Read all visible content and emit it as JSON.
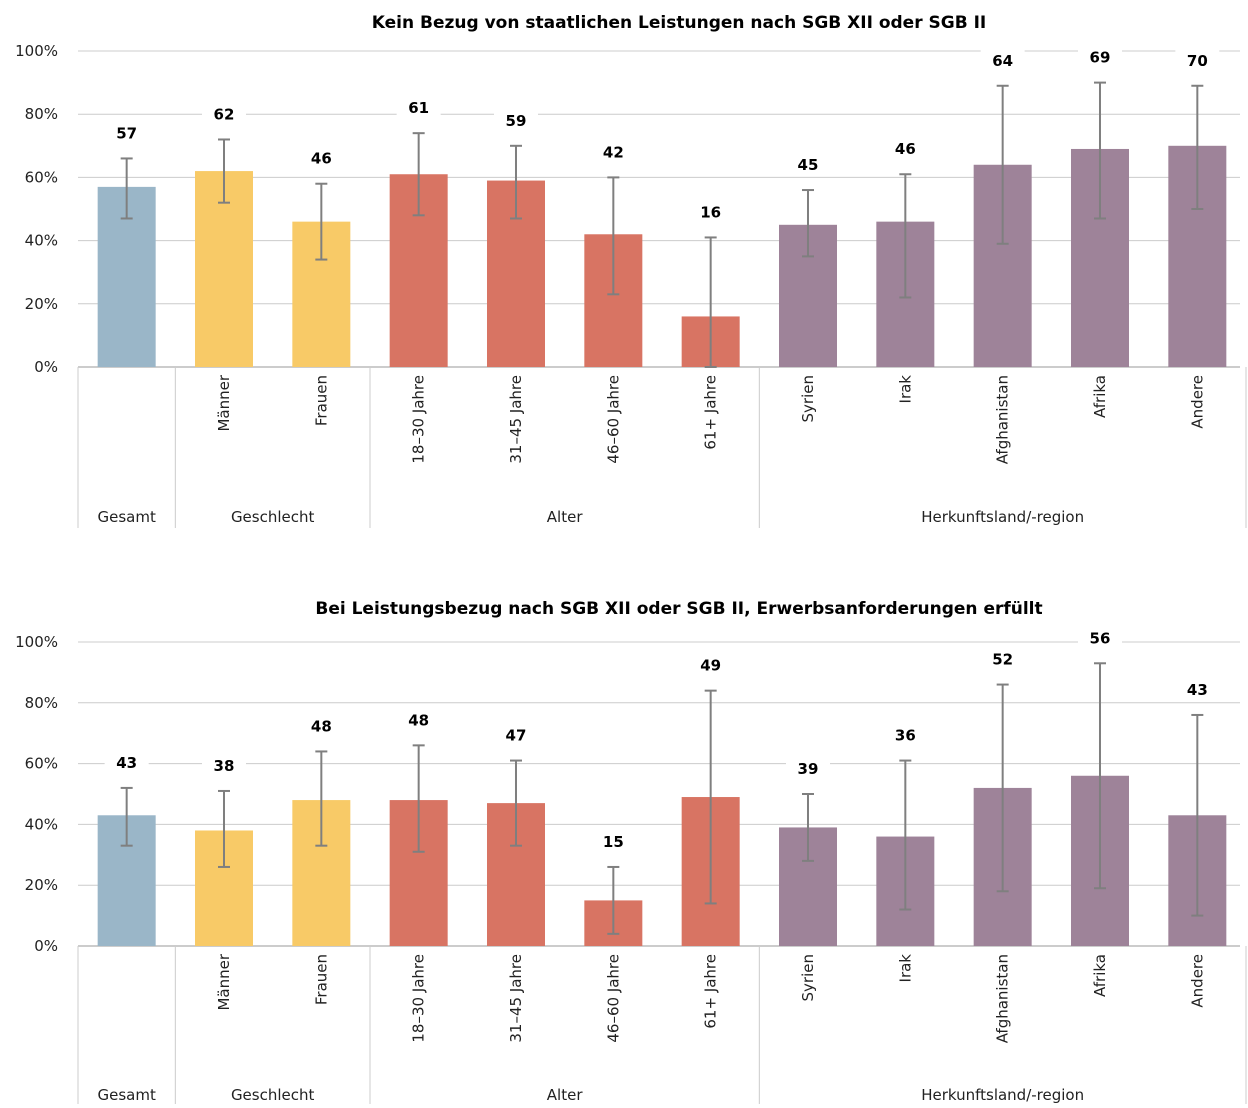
{
  "chart_data": [
    {
      "type": "bar",
      "title": "Kein Bezug von staatlichen Leistungen nach SGB XII oder SGB II",
      "ylim": [
        0,
        100
      ],
      "yticks": [
        "0%",
        "20%",
        "40%",
        "60%",
        "80%",
        "100%"
      ],
      "grid": true,
      "categories": [
        "",
        "Männer",
        "Frauen",
        "18–30 Jahre",
        "31–45 Jahre",
        "46–60 Jahre",
        "61+ Jahre",
        "Syrien",
        "Irak",
        "Afghanistan",
        "Afrika",
        "Andere"
      ],
      "groups": [
        {
          "label": "Gesamt",
          "count": 1,
          "color": "#9AB6C8"
        },
        {
          "label": "Geschlecht",
          "count": 2,
          "color": "#F8CA67"
        },
        {
          "label": "Alter",
          "count": 4,
          "color": "#D87463"
        },
        {
          "label": "Herkunftsland/-region",
          "count": 5,
          "color": "#9E8399"
        }
      ],
      "values": [
        57,
        62,
        46,
        61,
        59,
        42,
        16,
        45,
        46,
        64,
        69,
        70
      ],
      "value_labels": [
        "57",
        "62",
        "46",
        "61",
        "59",
        "42",
        "16",
        "45",
        "46",
        "64",
        "69",
        "70"
      ],
      "error_low": [
        47,
        52,
        34,
        48,
        47,
        23,
        0,
        35,
        22,
        39,
        47,
        50
      ],
      "error_high": [
        66,
        72,
        58,
        74,
        70,
        60,
        41,
        56,
        61,
        89,
        90,
        89
      ]
    },
    {
      "type": "bar",
      "title": "Bei Leistungsbezug nach SGB XII oder SGB II, Erwerbsanforderungen erfüllt",
      "ylim": [
        0,
        100
      ],
      "yticks": [
        "0%",
        "20%",
        "40%",
        "60%",
        "80%",
        "100%"
      ],
      "grid": true,
      "categories": [
        "",
        "Männer",
        "Frauen",
        "18–30 Jahre",
        "31–45 Jahre",
        "46–60 Jahre",
        "61+ Jahre",
        "Syrien",
        "Irak",
        "Afghanistan",
        "Afrika",
        "Andere"
      ],
      "groups": [
        {
          "label": "Gesamt",
          "count": 1,
          "color": "#9AB6C8"
        },
        {
          "label": "Geschlecht",
          "count": 2,
          "color": "#F8CA67"
        },
        {
          "label": "Alter",
          "count": 4,
          "color": "#D87463"
        },
        {
          "label": "Herkunftsland/-region",
          "count": 5,
          "color": "#9E8399"
        }
      ],
      "values": [
        43,
        38,
        48,
        48,
        47,
        15,
        49,
        39,
        36,
        52,
        56,
        43
      ],
      "value_labels": [
        "43",
        "38",
        "48",
        "48",
        "47",
        "15",
        "49",
        "39",
        "36",
        "52",
        "56",
        "43"
      ],
      "error_low": [
        33,
        26,
        33,
        31,
        33,
        4,
        14,
        28,
        12,
        18,
        19,
        10
      ],
      "error_high": [
        52,
        51,
        64,
        66,
        61,
        26,
        84,
        50,
        61,
        86,
        93,
        76
      ]
    }
  ],
  "colors": {
    "gridline": "#cccccc",
    "axis": "#999999",
    "error_bar": "#7f7f7f"
  }
}
